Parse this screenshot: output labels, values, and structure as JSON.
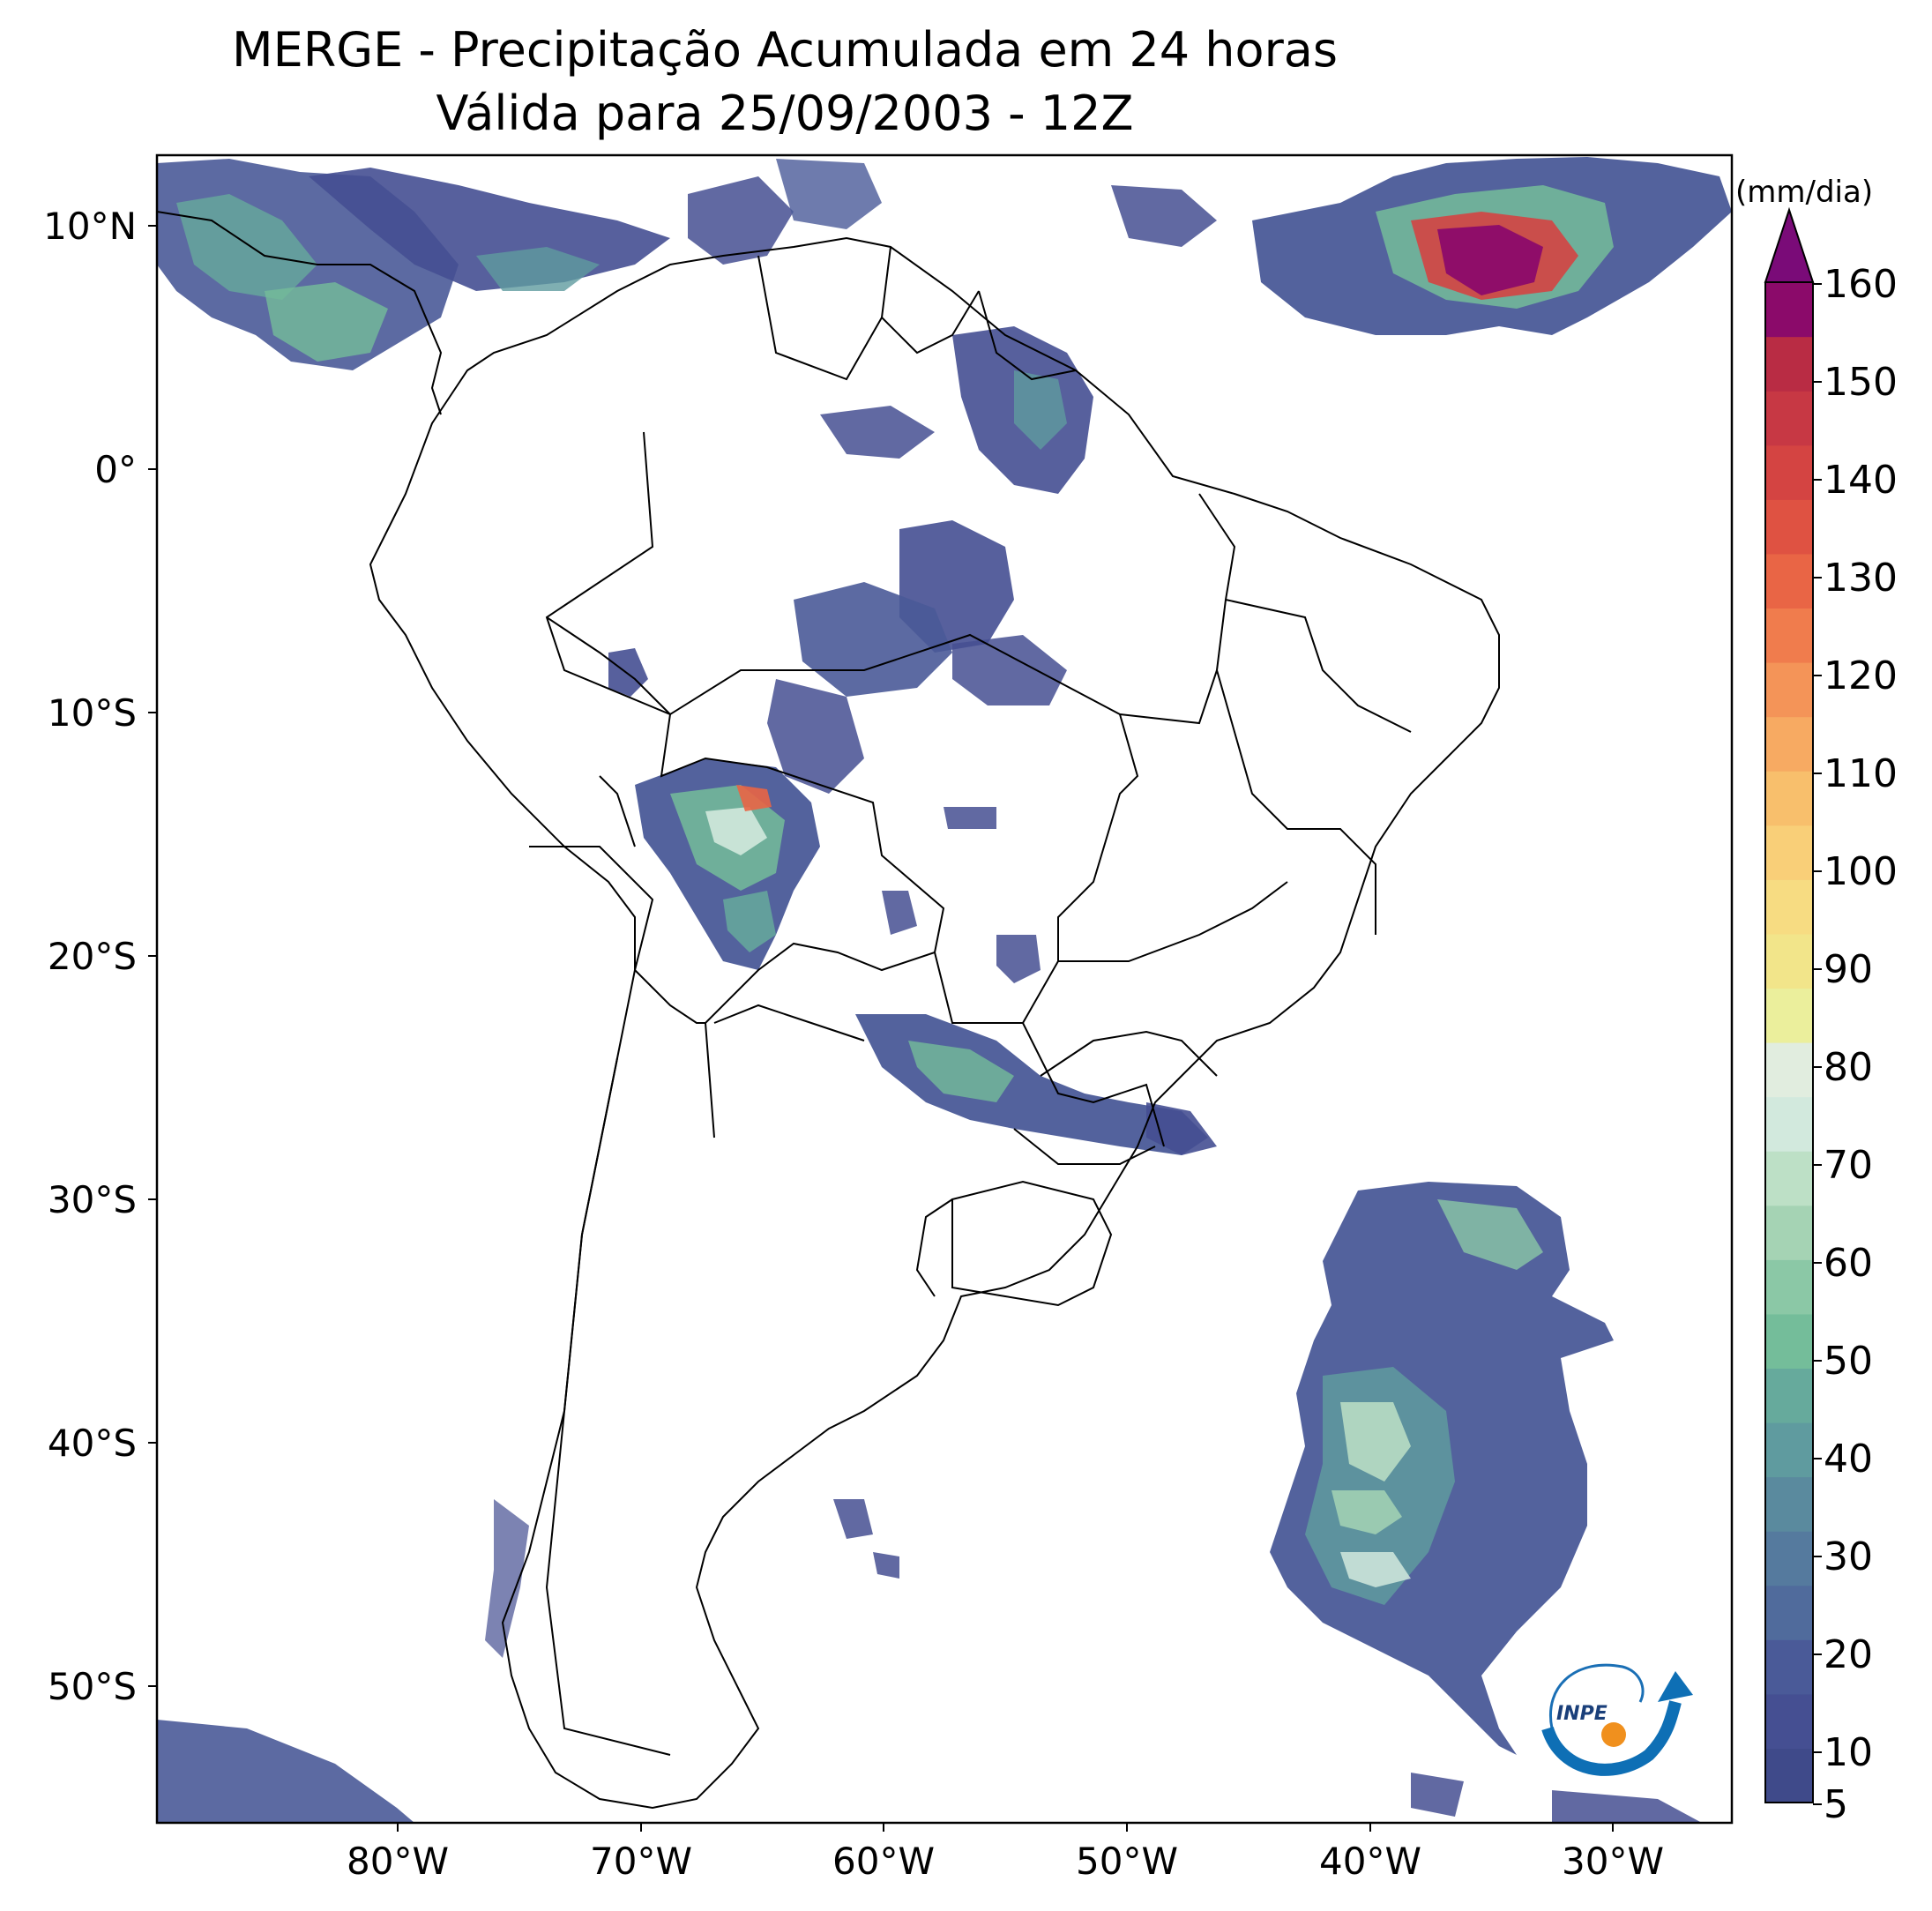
{
  "title": {
    "line1": "MERGE - Precipitação Acumulada em 24 horas",
    "line2": "Válida para 25/09/2003 - 12Z"
  },
  "axes": {
    "lat_labels": [
      "10°N",
      "0°",
      "10°S",
      "20°S",
      "30°S",
      "40°S",
      "50°S"
    ],
    "lon_labels": [
      "80°W",
      "70°W",
      "60°W",
      "50°W",
      "40°W",
      "30°W"
    ]
  },
  "colorbar": {
    "unit": "(mm/dia)",
    "labels": [
      "160",
      "150",
      "140",
      "130",
      "120",
      "110",
      "100",
      "90",
      "80",
      "70",
      "60",
      "50",
      "40",
      "30",
      "20",
      "10",
      "5"
    ],
    "colors_bottom_to_top": [
      "#3f4a8a",
      "#454f92",
      "#4a5a98",
      "#506b9c",
      "#557a9e",
      "#5a8a9e",
      "#5f9b9f",
      "#66aa9c",
      "#74bd9a",
      "#8bc8a6",
      "#a5d3b4",
      "#bde0c6",
      "#d2e9dd",
      "#e1eddf",
      "#ebef9c",
      "#f2e58a",
      "#f7dc82",
      "#f9cf78",
      "#f8bf6c",
      "#f7aa62",
      "#f49458",
      "#f07c4d",
      "#e96545",
      "#df5242",
      "#d44442",
      "#c73844",
      "#b92c44",
      "#8b0a6a"
    ],
    "extend_color": "#7a0b78"
  },
  "logo": {
    "text": "INPE"
  }
}
